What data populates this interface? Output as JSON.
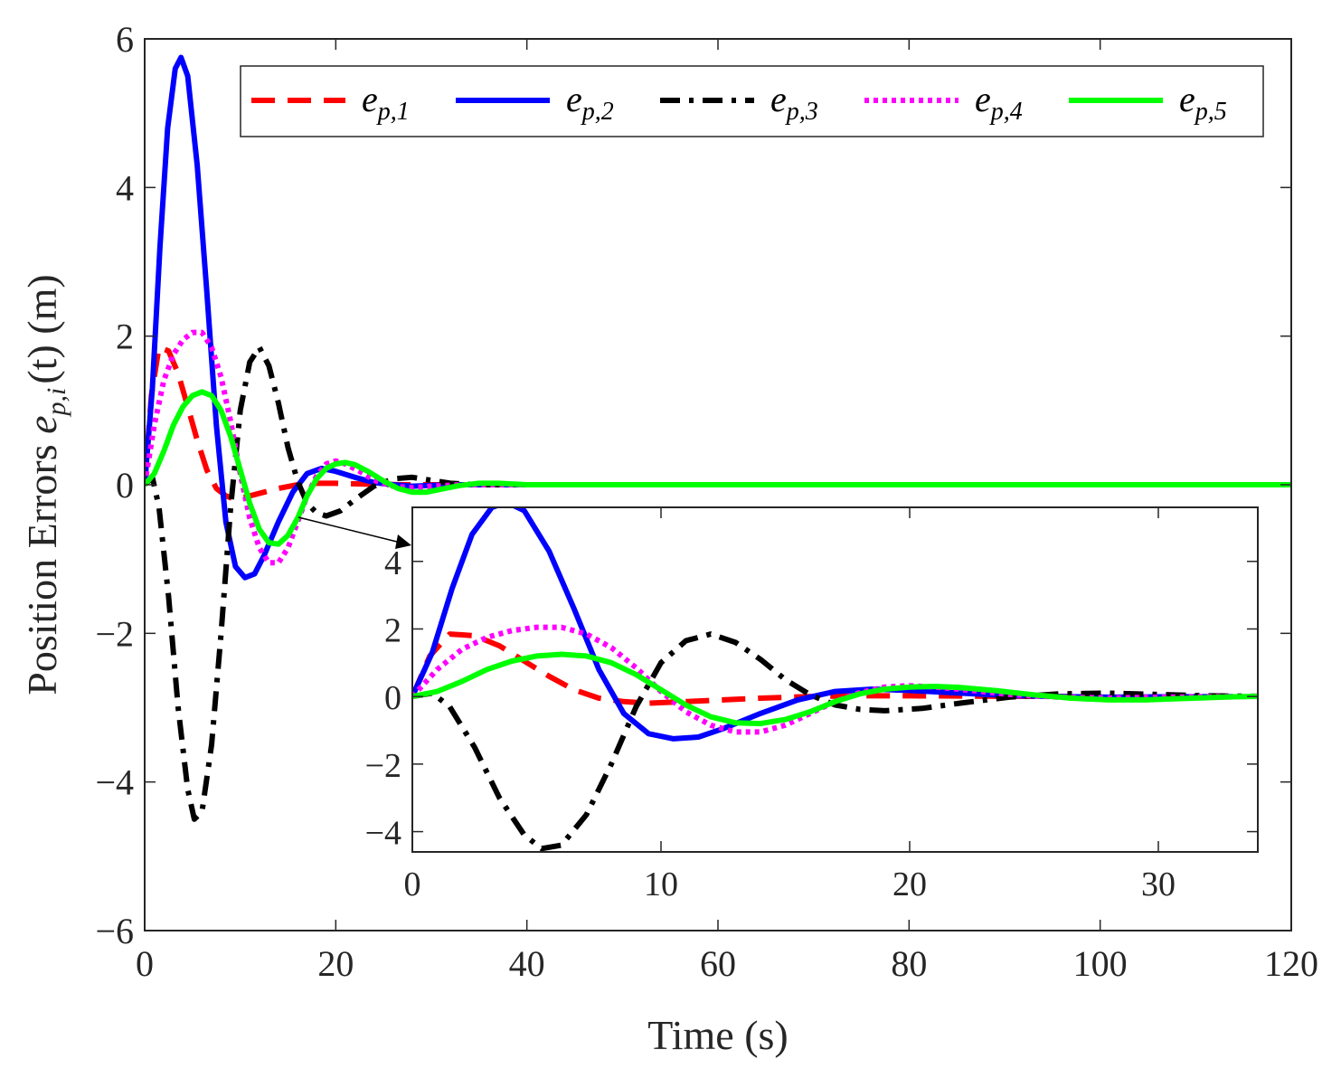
{
  "chart_data": {
    "type": "line",
    "title": "",
    "xlabel": "Time (s)",
    "ylabel_prefix": "Position Errors ",
    "ylabel_symbol": "e",
    "ylabel_sub": "p,i",
    "ylabel_suffix": "(t) (m)",
    "xlim": [
      0,
      120
    ],
    "ylim": [
      -6,
      6
    ],
    "xticks": [
      "0",
      "20",
      "40",
      "60",
      "80",
      "100",
      "120"
    ],
    "yticks": [
      "6",
      "4",
      "2",
      "0",
      "−2",
      "−4",
      "−6"
    ],
    "grid": false,
    "legend_position": "top-right",
    "series": [
      {
        "name": "e_p,1",
        "label_base": "e",
        "label_sub": "p,1",
        "color": "#ff0000",
        "dash": "dashed",
        "points": [
          [
            0,
            0
          ],
          [
            0.7,
            1.2
          ],
          [
            1.5,
            1.85
          ],
          [
            2.5,
            1.8
          ],
          [
            3.5,
            1.5
          ],
          [
            4.5,
            1.05
          ],
          [
            5.5,
            0.6
          ],
          [
            6.5,
            0.2
          ],
          [
            7.5,
            -0.05
          ],
          [
            8.5,
            -0.15
          ],
          [
            9.5,
            -0.2
          ],
          [
            11,
            -0.15
          ],
          [
            12.5,
            -0.1
          ],
          [
            14,
            -0.05
          ],
          [
            16,
            0.0
          ],
          [
            18,
            0.02
          ],
          [
            20,
            0.02
          ],
          [
            23,
            0.01
          ],
          [
            27,
            0.0
          ],
          [
            120,
            0
          ]
        ]
      },
      {
        "name": "e_p,2",
        "label_base": "e",
        "label_sub": "p,2",
        "color": "#0000ff",
        "dash": "solid",
        "points": [
          [
            0,
            0
          ],
          [
            0.8,
            1.3
          ],
          [
            1.6,
            3.2
          ],
          [
            2.4,
            4.8
          ],
          [
            3.2,
            5.6
          ],
          [
            3.8,
            5.75
          ],
          [
            4.5,
            5.5
          ],
          [
            5.5,
            4.3
          ],
          [
            6.5,
            2.6
          ],
          [
            7.5,
            0.8
          ],
          [
            8.5,
            -0.5
          ],
          [
            9.5,
            -1.1
          ],
          [
            10.5,
            -1.25
          ],
          [
            11.5,
            -1.2
          ],
          [
            12.5,
            -0.95
          ],
          [
            14,
            -0.5
          ],
          [
            15.5,
            -0.1
          ],
          [
            17,
            0.15
          ],
          [
            18.5,
            0.22
          ],
          [
            20,
            0.18
          ],
          [
            22,
            0.1
          ],
          [
            24,
            0.03
          ],
          [
            26,
            0.0
          ],
          [
            28,
            -0.02
          ],
          [
            30,
            -0.01
          ],
          [
            33,
            0.0
          ],
          [
            120,
            0
          ]
        ]
      },
      {
        "name": "e_p,3",
        "label_base": "e",
        "label_sub": "p,3",
        "color": "#000000",
        "dash": "dashdot",
        "points": [
          [
            0,
            0
          ],
          [
            0.8,
            0.1
          ],
          [
            1.5,
            -0.3
          ],
          [
            2.5,
            -1.5
          ],
          [
            3.5,
            -3.0
          ],
          [
            4.5,
            -4.1
          ],
          [
            5.2,
            -4.5
          ],
          [
            6,
            -4.4
          ],
          [
            7,
            -3.5
          ],
          [
            8,
            -2.0
          ],
          [
            9,
            -0.3
          ],
          [
            10,
            1.0
          ],
          [
            11,
            1.65
          ],
          [
            12,
            1.85
          ],
          [
            13,
            1.6
          ],
          [
            14,
            1.1
          ],
          [
            15,
            0.5
          ],
          [
            16,
            0.05
          ],
          [
            17,
            -0.25
          ],
          [
            18,
            -0.38
          ],
          [
            19,
            -0.42
          ],
          [
            20.5,
            -0.35
          ],
          [
            22,
            -0.2
          ],
          [
            24,
            -0.02
          ],
          [
            26,
            0.08
          ],
          [
            28,
            0.1
          ],
          [
            30,
            0.06
          ],
          [
            32,
            0.02
          ],
          [
            35,
            0.0
          ],
          [
            120,
            0
          ]
        ]
      },
      {
        "name": "e_p,4",
        "label_base": "e",
        "label_sub": "p,4",
        "color": "#ff00ff",
        "dash": "dotted",
        "points": [
          [
            0,
            0
          ],
          [
            1,
            0.8
          ],
          [
            2,
            1.4
          ],
          [
            3,
            1.75
          ],
          [
            4,
            1.95
          ],
          [
            5,
            2.05
          ],
          [
            6,
            2.05
          ],
          [
            7,
            1.85
          ],
          [
            8,
            1.45
          ],
          [
            9,
            0.85
          ],
          [
            10,
            0.15
          ],
          [
            11,
            -0.45
          ],
          [
            12,
            -0.85
          ],
          [
            13,
            -1.05
          ],
          [
            14,
            -1.05
          ],
          [
            15,
            -0.85
          ],
          [
            16,
            -0.5
          ],
          [
            17,
            -0.15
          ],
          [
            18,
            0.12
          ],
          [
            19,
            0.28
          ],
          [
            20,
            0.32
          ],
          [
            21,
            0.28
          ],
          [
            22.5,
            0.18
          ],
          [
            24,
            0.06
          ],
          [
            26,
            -0.02
          ],
          [
            28,
            -0.04
          ],
          [
            30,
            -0.02
          ],
          [
            33,
            0.0
          ],
          [
            120,
            0
          ]
        ]
      },
      {
        "name": "e_p,5",
        "label_base": "e",
        "label_sub": "p,5",
        "color": "#00ff00",
        "dash": "solid",
        "points": [
          [
            0,
            0
          ],
          [
            1,
            0.15
          ],
          [
            2,
            0.45
          ],
          [
            3,
            0.8
          ],
          [
            4,
            1.05
          ],
          [
            5,
            1.2
          ],
          [
            6,
            1.25
          ],
          [
            7,
            1.2
          ],
          [
            8,
            1.0
          ],
          [
            9,
            0.65
          ],
          [
            10,
            0.2
          ],
          [
            11,
            -0.25
          ],
          [
            12,
            -0.6
          ],
          [
            13,
            -0.78
          ],
          [
            14,
            -0.8
          ],
          [
            15,
            -0.68
          ],
          [
            16,
            -0.45
          ],
          [
            17,
            -0.15
          ],
          [
            18,
            0.08
          ],
          [
            19,
            0.22
          ],
          [
            20,
            0.28
          ],
          [
            21,
            0.3
          ],
          [
            22,
            0.27
          ],
          [
            23.5,
            0.17
          ],
          [
            25,
            0.05
          ],
          [
            26.5,
            -0.05
          ],
          [
            28,
            -0.1
          ],
          [
            29.5,
            -0.1
          ],
          [
            31,
            -0.06
          ],
          [
            33,
            -0.01
          ],
          [
            35,
            0.02
          ],
          [
            37,
            0.02
          ],
          [
            40,
            0.0
          ],
          [
            120,
            0
          ]
        ]
      }
    ],
    "inset": {
      "xlim": [
        0,
        34
      ],
      "ylim": [
        -4.6,
        5.6
      ],
      "xticks": [
        "0",
        "10",
        "20",
        "30"
      ],
      "yticks": [
        "4",
        "2",
        "0",
        "−2",
        "−4"
      ],
      "zoom_arrow": "from main curves near t≈16 s pointing to inset"
    }
  }
}
